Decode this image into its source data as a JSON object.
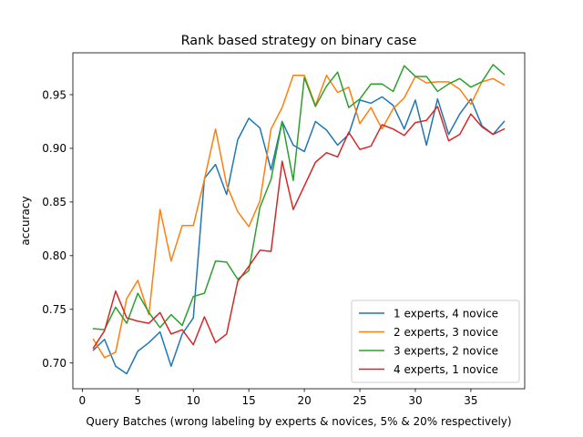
{
  "chart_data": {
    "type": "line",
    "title": "Rank based strategy on binary case",
    "xlabel": "Query Batches (wrong labeling by experts & novices, 5% & 20% respectively)",
    "ylabel": "accuracy",
    "xlim": [
      -0.85,
      39.85
    ],
    "ylim": [
      0.676,
      0.989
    ],
    "xticks": [
      0,
      5,
      10,
      15,
      20,
      25,
      30,
      35
    ],
    "yticks": [
      0.7,
      0.75,
      0.8,
      0.85,
      0.9,
      0.95
    ],
    "xtick_labels": [
      "0",
      "5",
      "10",
      "15",
      "20",
      "25",
      "30",
      "35"
    ],
    "ytick_labels": [
      "0.70",
      "0.75",
      "0.80",
      "0.85",
      "0.90",
      "0.95"
    ],
    "grid": false,
    "legend_position": "lower right",
    "x": [
      1,
      2,
      3,
      4,
      5,
      6,
      7,
      8,
      9,
      10,
      11,
      12,
      13,
      14,
      15,
      16,
      17,
      18,
      19,
      20,
      21,
      22,
      23,
      24,
      25,
      26,
      27,
      28,
      29,
      30,
      31,
      32,
      33,
      34,
      35,
      36,
      37,
      38
    ],
    "series": [
      {
        "name": "1 experts, 4 novice",
        "color": "#1f77b4",
        "values": [
          0.712,
          0.722,
          0.697,
          0.69,
          0.711,
          0.719,
          0.729,
          0.697,
          0.727,
          0.742,
          0.872,
          0.885,
          0.857,
          0.908,
          0.928,
          0.919,
          0.88,
          0.925,
          0.903,
          0.897,
          0.925,
          0.917,
          0.903,
          0.913,
          0.945,
          0.942,
          0.948,
          0.94,
          0.918,
          0.945,
          0.903,
          0.946,
          0.913,
          0.932,
          0.946,
          0.921,
          0.913,
          0.925
        ]
      },
      {
        "name": "2 experts, 3 novice",
        "color": "#ff7f0e",
        "values": [
          0.722,
          0.705,
          0.71,
          0.76,
          0.777,
          0.745,
          0.843,
          0.795,
          0.828,
          0.828,
          0.871,
          0.918,
          0.866,
          0.841,
          0.827,
          0.851,
          0.918,
          0.938,
          0.968,
          0.968,
          0.94,
          0.968,
          0.952,
          0.957,
          0.923,
          0.938,
          0.918,
          0.937,
          0.947,
          0.967,
          0.961,
          0.962,
          0.962,
          0.955,
          0.941,
          0.962,
          0.965,
          0.959
        ]
      },
      {
        "name": "3 experts, 2 novice",
        "color": "#2ca02c",
        "values": [
          0.732,
          0.731,
          0.752,
          0.737,
          0.765,
          0.747,
          0.733,
          0.745,
          0.735,
          0.762,
          0.765,
          0.795,
          0.794,
          0.778,
          0.786,
          0.845,
          0.871,
          0.925,
          0.87,
          0.966,
          0.939,
          0.958,
          0.971,
          0.938,
          0.946,
          0.96,
          0.96,
          0.953,
          0.977,
          0.967,
          0.967,
          0.953,
          0.96,
          0.965,
          0.957,
          0.962,
          0.978,
          0.969
        ]
      },
      {
        "name": "4 experts, 1 novice",
        "color": "#d62728",
        "values": [
          0.714,
          0.73,
          0.767,
          0.742,
          0.739,
          0.737,
          0.747,
          0.727,
          0.731,
          0.717,
          0.743,
          0.719,
          0.727,
          0.776,
          0.79,
          0.805,
          0.804,
          0.888,
          0.843,
          0.865,
          0.887,
          0.896,
          0.892,
          0.915,
          0.899,
          0.902,
          0.922,
          0.918,
          0.912,
          0.924,
          0.926,
          0.939,
          0.907,
          0.913,
          0.932,
          0.92,
          0.913,
          0.918
        ]
      }
    ]
  }
}
